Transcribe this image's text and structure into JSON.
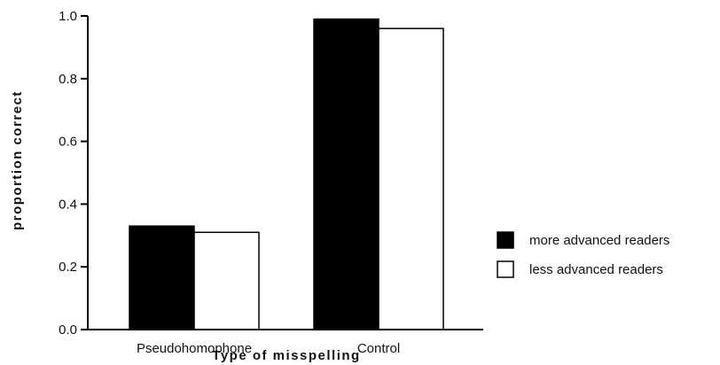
{
  "chart_data": {
    "type": "bar",
    "title": "",
    "xlabel": "Type of misspelling",
    "ylabel": "proportion correct",
    "ylim": [
      0.0,
      1.0
    ],
    "yticks": [
      "0.0",
      "0.2",
      "0.4",
      "0.6",
      "0.8",
      "1.0"
    ],
    "categories": [
      "Pseudohomophone",
      "Control"
    ],
    "series": [
      {
        "name": "more advanced readers",
        "values": [
          0.33,
          0.99
        ],
        "color": "#000000"
      },
      {
        "name": "less advanced readers",
        "values": [
          0.31,
          0.96
        ],
        "color": "#ffffff"
      }
    ],
    "legend_position": "right",
    "grid": false
  }
}
